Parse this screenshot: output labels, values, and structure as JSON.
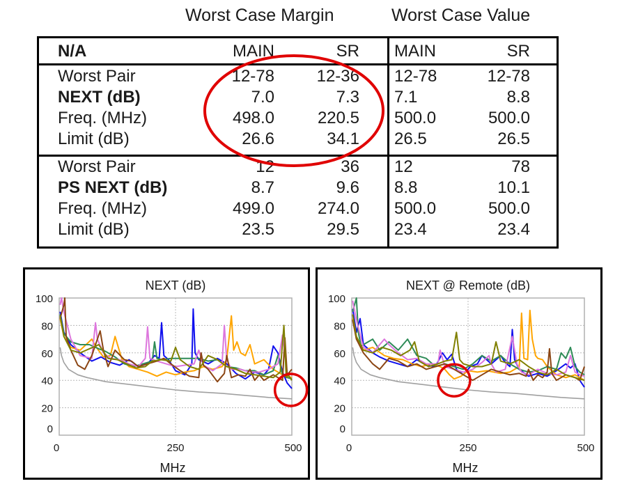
{
  "table": {
    "group_headers": {
      "margin": "Worst Case Margin",
      "value": "Worst Case Value"
    },
    "header": {
      "label": "N/A",
      "margin_main": "MAIN",
      "margin_sr": "SR",
      "value_main": "MAIN",
      "value_sr": "SR"
    },
    "sections": [
      {
        "rows": [
          {
            "label": "Worst Pair",
            "bold": false,
            "margin_main": "12-78",
            "margin_sr": "12-36",
            "value_main": "12-78",
            "value_sr": "12-78"
          },
          {
            "label": "NEXT (dB)",
            "bold": true,
            "margin_main": "7.0",
            "margin_sr": "7.3",
            "value_main": "7.1",
            "value_sr": "8.8"
          },
          {
            "label": "Freq. (MHz)",
            "bold": false,
            "margin_main": "498.0",
            "margin_sr": "220.5",
            "value_main": "500.0",
            "value_sr": "500.0"
          },
          {
            "label": "Limit (dB)",
            "bold": false,
            "margin_main": "26.6",
            "margin_sr": "34.1",
            "value_main": "26.5",
            "value_sr": "26.5"
          }
        ]
      },
      {
        "rows": [
          {
            "label": "Worst Pair",
            "bold": false,
            "margin_main": "12",
            "margin_sr": "36",
            "value_main": "12",
            "value_sr": "78"
          },
          {
            "label": "PS NEXT (dB)",
            "bold": true,
            "margin_main": "8.7",
            "margin_sr": "9.6",
            "value_main": "8.8",
            "value_sr": "10.1"
          },
          {
            "label": "Freq. (MHz)",
            "bold": false,
            "margin_main": "499.0",
            "margin_sr": "274.0",
            "value_main": "500.0",
            "value_sr": "500.0"
          },
          {
            "label": "Limit (dB)",
            "bold": false,
            "margin_main": "23.5",
            "margin_sr": "29.5",
            "value_main": "23.4",
            "value_sr": "23.4"
          }
        ]
      }
    ],
    "highlight_color": "#e00000"
  },
  "chart_data": [
    {
      "type": "line",
      "title": "NEXT (dB)",
      "xlabel": "MHz",
      "ylabel": "",
      "xlim": [
        0,
        500
      ],
      "ylim": [
        0,
        100
      ],
      "xticks": [
        0,
        250,
        500
      ],
      "yticks": [
        0,
        20,
        40,
        60,
        80,
        100
      ],
      "grid": true,
      "highlight": {
        "x": 498,
        "y": 33,
        "color": "#e00000"
      },
      "series": [
        {
          "name": "limit",
          "color": "#a0a0a0",
          "x": [
            2,
            5,
            10,
            20,
            40,
            60,
            100,
            150,
            200,
            250,
            300,
            350,
            400,
            450,
            500
          ],
          "y": [
            64,
            58,
            53,
            48,
            44,
            42,
            39,
            37,
            35,
            33,
            31.5,
            30.5,
            29,
            27.5,
            26.5
          ]
        },
        {
          "name": "blue",
          "color": "#1010ee",
          "x": [
            2,
            10,
            25,
            45,
            70,
            90,
            110,
            130,
            150,
            170,
            190,
            205,
            215,
            220,
            225,
            235,
            250,
            270,
            285,
            288,
            292,
            300,
            320,
            340,
            360,
            380,
            400,
            420,
            440,
            450,
            460,
            470,
            480,
            490,
            500
          ],
          "y": [
            90,
            75,
            66,
            60,
            54,
            57,
            53,
            51,
            55,
            50,
            52,
            58,
            56,
            82,
            58,
            55,
            47,
            44,
            52,
            92,
            60,
            55,
            52,
            56,
            52,
            45,
            41,
            46,
            44,
            48,
            65,
            60,
            46,
            38,
            34
          ]
        },
        {
          "name": "orange",
          "color": "#ffa500",
          "x": [
            2,
            10,
            25,
            45,
            70,
            80,
            95,
            110,
            120,
            135,
            150,
            170,
            190,
            210,
            230,
            250,
            270,
            290,
            310,
            330,
            350,
            360,
            370,
            375,
            382,
            390,
            400,
            410,
            420,
            440,
            460,
            480,
            500
          ],
          "y": [
            85,
            72,
            64,
            62,
            70,
            64,
            57,
            58,
            72,
            55,
            50,
            48,
            46,
            43,
            46,
            44,
            46,
            47,
            50,
            48,
            50,
            55,
            87,
            62,
            68,
            60,
            58,
            66,
            52,
            55,
            48,
            44,
            42
          ]
        },
        {
          "name": "green",
          "color": "#2e8b57",
          "x": [
            2,
            10,
            25,
            45,
            65,
            85,
            100,
            120,
            140,
            160,
            180,
            200,
            205,
            210,
            220,
            240,
            260,
            280,
            300,
            320,
            340,
            360,
            380,
            400,
            420,
            440,
            460,
            470,
            480,
            490,
            500
          ],
          "y": [
            88,
            74,
            68,
            66,
            66,
            63,
            61,
            57,
            52,
            50,
            52,
            54,
            68,
            56,
            55,
            56,
            56,
            56,
            56,
            54,
            55,
            50,
            49,
            47,
            47,
            44,
            47,
            58,
            44,
            42,
            41
          ]
        },
        {
          "name": "violet",
          "color": "#dd77dd",
          "x": [
            2,
            5,
            10,
            25,
            45,
            70,
            78,
            82,
            95,
            110,
            130,
            150,
            170,
            185,
            190,
            195,
            210,
            230,
            250,
            270,
            290,
            300,
            310,
            330,
            350,
            355,
            360,
            370,
            390,
            410,
            430,
            450,
            470,
            480,
            485,
            490,
            500
          ],
          "y": [
            95,
            100,
            90,
            70,
            58,
            56,
            82,
            70,
            60,
            56,
            55,
            52,
            50,
            56,
            79,
            56,
            54,
            52,
            50,
            51,
            52,
            62,
            51,
            47,
            52,
            80,
            55,
            48,
            48,
            46,
            46,
            48,
            52,
            73,
            60,
            45,
            44
          ]
        },
        {
          "name": "brown",
          "color": "#8b4513",
          "x": [
            2,
            10,
            12,
            15,
            25,
            40,
            55,
            70,
            88,
            95,
            105,
            120,
            140,
            155,
            170,
            190,
            210,
            225,
            240,
            260,
            280,
            300,
            305,
            310,
            320,
            340,
            355,
            360,
            370,
            385,
            400,
            410,
            420,
            430,
            440,
            460,
            480,
            485,
            490,
            500
          ],
          "y": [
            85,
            95,
            100,
            72,
            62,
            51,
            48,
            58,
            76,
            62,
            50,
            62,
            55,
            54,
            50,
            52,
            54,
            56,
            52,
            47,
            43,
            42,
            60,
            51,
            48,
            39,
            45,
            58,
            42,
            44,
            43,
            48,
            40,
            44,
            40,
            44,
            40,
            71,
            44,
            48
          ]
        },
        {
          "name": "olive",
          "color": "#808000",
          "x": [
            2,
            10,
            25,
            45,
            65,
            85,
            105,
            125,
            145,
            165,
            185,
            200,
            220,
            240,
            250,
            260,
            280,
            300,
            320,
            340,
            360,
            380,
            400,
            420,
            440,
            460,
            475,
            483,
            488,
            492,
            500
          ],
          "y": [
            87,
            72,
            62,
            60,
            63,
            66,
            56,
            55,
            52,
            49,
            50,
            54,
            55,
            54,
            64,
            55,
            50,
            48,
            58,
            55,
            50,
            48,
            45,
            44,
            43,
            42,
            46,
            80,
            42,
            44,
            40
          ]
        }
      ]
    },
    {
      "type": "line",
      "title": "NEXT @ Remote (dB)",
      "xlabel": "MHz",
      "ylabel": "",
      "xlim": [
        0,
        500
      ],
      "ylim": [
        0,
        100
      ],
      "xticks": [
        0,
        250,
        500
      ],
      "yticks": [
        0,
        20,
        40,
        60,
        80,
        100
      ],
      "grid": true,
      "highlight": {
        "x": 220,
        "y": 40,
        "color": "#e00000"
      },
      "series": [
        {
          "name": "limit",
          "color": "#a0a0a0",
          "x": [
            2,
            5,
            10,
            20,
            40,
            60,
            100,
            150,
            200,
            250,
            300,
            350,
            400,
            450,
            500
          ],
          "y": [
            64,
            58,
            53,
            48,
            44,
            42,
            39,
            37,
            35,
            33,
            31.5,
            30.5,
            29,
            27.5,
            26.5
          ]
        },
        {
          "name": "blue",
          "color": "#1010ee",
          "x": [
            2,
            10,
            18,
            25,
            45,
            60,
            80,
            100,
            120,
            140,
            160,
            180,
            195,
            205,
            215,
            225,
            240,
            255,
            270,
            280,
            300,
            320,
            330,
            340,
            345,
            350,
            360,
            380,
            400,
            420,
            440,
            460,
            470,
            480,
            490,
            500
          ],
          "y": [
            92,
            75,
            85,
            66,
            60,
            57,
            54,
            52,
            50,
            55,
            51,
            50,
            60,
            55,
            59,
            48,
            44,
            50,
            52,
            58,
            52,
            58,
            53,
            50,
            77,
            55,
            48,
            43,
            45,
            43,
            47,
            52,
            49,
            52,
            40,
            35
          ]
        },
        {
          "name": "orange",
          "color": "#ffa500",
          "x": [
            2,
            10,
            25,
            45,
            70,
            90,
            110,
            130,
            150,
            170,
            190,
            200,
            210,
            220,
            235,
            250,
            270,
            290,
            320,
            340,
            360,
            365,
            370,
            378,
            383,
            388,
            395,
            400,
            410,
            420,
            440,
            460,
            480,
            500
          ],
          "y": [
            85,
            70,
            62,
            64,
            58,
            56,
            55,
            52,
            50,
            52,
            50,
            48,
            44,
            41,
            43,
            47,
            46,
            47,
            45,
            46,
            50,
            89,
            56,
            55,
            91,
            70,
            58,
            56,
            55,
            50,
            44,
            42,
            44,
            40
          ]
        },
        {
          "name": "green",
          "color": "#2e8b57",
          "x": [
            2,
            10,
            14,
            20,
            45,
            60,
            80,
            100,
            120,
            140,
            160,
            180,
            200,
            220,
            240,
            260,
            280,
            300,
            320,
            340,
            360,
            380,
            400,
            420,
            440,
            450,
            460,
            470,
            480,
            490,
            500
          ],
          "y": [
            90,
            100,
            75,
            65,
            70,
            62,
            68,
            62,
            70,
            58,
            56,
            50,
            52,
            50,
            48,
            52,
            58,
            54,
            58,
            52,
            48,
            46,
            47,
            50,
            48,
            60,
            56,
            64,
            50,
            46,
            44
          ]
        },
        {
          "name": "violet",
          "color": "#dd77dd",
          "x": [
            2,
            10,
            25,
            45,
            70,
            80,
            100,
            120,
            140,
            160,
            185,
            190,
            200,
            220,
            240,
            260,
            280,
            295,
            300,
            310,
            330,
            345,
            355,
            365,
            380,
            400,
            420,
            440,
            460,
            470,
            480,
            490,
            500
          ],
          "y": [
            98,
            84,
            64,
            60,
            70,
            66,
            60,
            55,
            56,
            52,
            52,
            62,
            50,
            48,
            46,
            48,
            53,
            58,
            52,
            46,
            48,
            72,
            52,
            46,
            44,
            48,
            45,
            44,
            46,
            58,
            46,
            44,
            43
          ]
        },
        {
          "name": "brown",
          "color": "#8b4513",
          "x": [
            2,
            10,
            25,
            45,
            60,
            80,
            100,
            120,
            140,
            160,
            180,
            200,
            220,
            240,
            260,
            280,
            300,
            320,
            340,
            360,
            375,
            380,
            390,
            400,
            410,
            420,
            425,
            430,
            440,
            460,
            480,
            490,
            500
          ],
          "y": [
            84,
            70,
            60,
            52,
            48,
            56,
            54,
            50,
            52,
            48,
            50,
            52,
            48,
            44,
            40,
            44,
            48,
            46,
            44,
            45,
            43,
            48,
            40,
            44,
            42,
            46,
            63,
            45,
            40,
            44,
            42,
            40,
            50
          ]
        },
        {
          "name": "olive",
          "color": "#808000",
          "x": [
            2,
            10,
            25,
            45,
            65,
            85,
            105,
            125,
            135,
            145,
            165,
            185,
            200,
            215,
            225,
            232,
            240,
            260,
            280,
            300,
            310,
            320,
            340,
            360,
            380,
            400,
            420,
            440,
            460,
            480,
            500
          ],
          "y": [
            88,
            72,
            62,
            60,
            64,
            62,
            58,
            62,
            68,
            54,
            50,
            52,
            54,
            55,
            75,
            55,
            52,
            50,
            50,
            52,
            68,
            54,
            52,
            55,
            50,
            46,
            44,
            48,
            44,
            42,
            40
          ]
        }
      ]
    }
  ]
}
